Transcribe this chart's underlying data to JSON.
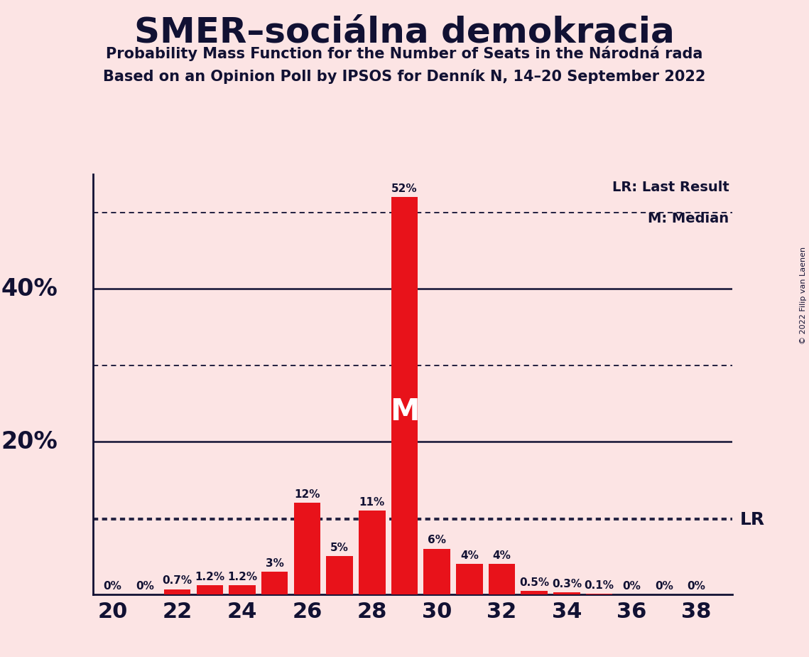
{
  "title": "SMER–sociálna demokracia",
  "subtitle1": "Probability Mass Function for the Number of Seats in the Národná rada",
  "subtitle2": "Based on an Opinion Poll by IPSOS for Denník N, 14–20 September 2022",
  "copyright": "© 2022 Filip van Laenen",
  "seats": [
    20,
    21,
    22,
    23,
    24,
    25,
    26,
    27,
    28,
    29,
    30,
    31,
    32,
    33,
    34,
    35,
    36,
    37,
    38
  ],
  "values": [
    0.0,
    0.0,
    0.7,
    1.2,
    1.2,
    3.0,
    12.0,
    5.0,
    11.0,
    52.0,
    6.0,
    4.0,
    4.0,
    0.5,
    0.3,
    0.1,
    0.0,
    0.0,
    0.0
  ],
  "bar_color": "#e8121a",
  "background_color": "#fce4e4",
  "median_seat": 29,
  "lr_value": 9.8,
  "ylim_max": 55,
  "solid_yticks": [
    20,
    40
  ],
  "dotted_yticks": [
    10,
    30,
    50
  ],
  "xtick_major": [
    20,
    22,
    24,
    26,
    28,
    30,
    32,
    34,
    36,
    38
  ],
  "legend_lr": "LR: Last Result",
  "legend_m": "M: Median",
  "label_lr": "LR",
  "bar_width": 0.82,
  "title_fontsize": 36,
  "subtitle_fontsize": 15,
  "bar_label_fontsize": 11,
  "axis_label_fontsize": 24,
  "xtick_fontsize": 22,
  "legend_fontsize": 14,
  "lr_label_fontsize": 18,
  "m_inside_fontsize": 30,
  "copyright_fontsize": 8
}
